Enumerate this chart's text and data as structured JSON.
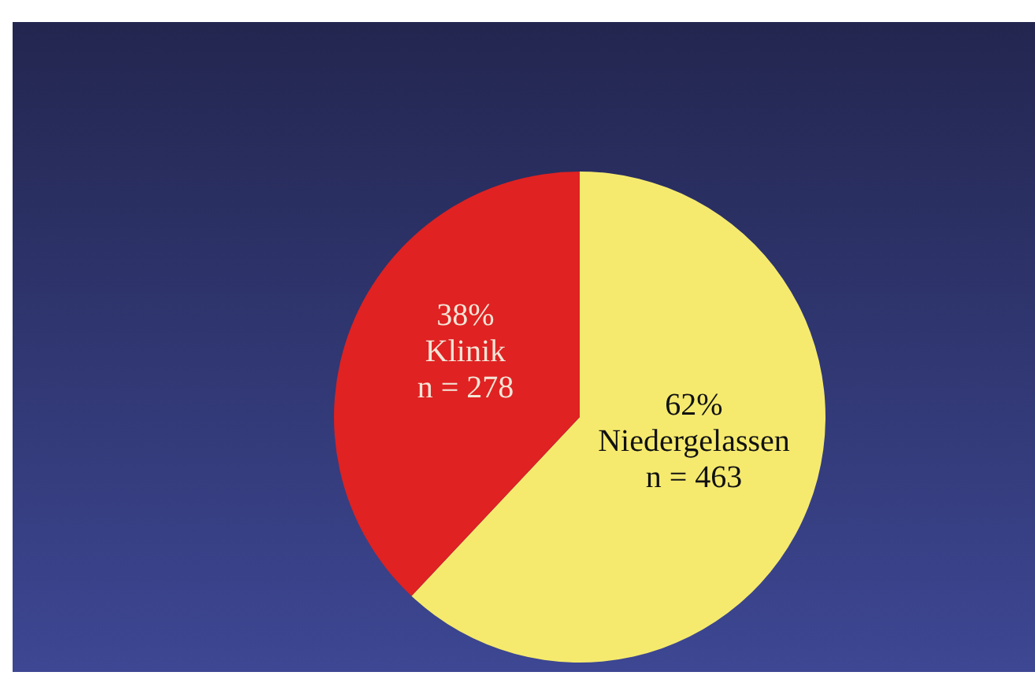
{
  "chart_data": {
    "type": "pie",
    "categories": [
      "Niedergelassen",
      "Klinik"
    ],
    "values": [
      62,
      38
    ],
    "colors": [
      "#f5ea6e",
      "#e02222"
    ],
    "value_labels": [
      "62%\nn = 463",
      "38%\nn = 278"
    ],
    "legend": false
  }
}
